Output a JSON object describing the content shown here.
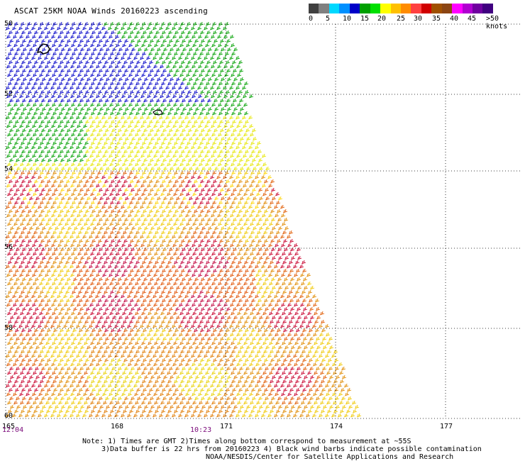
{
  "title": "ASCAT 25KM NOAA Winds 20160223 ascending",
  "legend": {
    "colors": [
      "#404040",
      "#808080",
      "#00d8ff",
      "#0090ff",
      "#0000c8",
      "#00a000",
      "#00e000",
      "#ffff00",
      "#ffc000",
      "#ff8c00",
      "#ff4040",
      "#d00000",
      "#a05000",
      "#8b4513",
      "#ff00ff",
      "#b000d0",
      "#7000a0",
      "#400080"
    ],
    "labels": [
      "0",
      "5",
      "10",
      "15",
      "20",
      "25",
      "30",
      "35",
      "40",
      "45",
      ">50 knots"
    ]
  },
  "map": {
    "latitude_labels": [
      "50",
      "52",
      "54",
      "56",
      "58",
      "60"
    ],
    "longitude_labels": [
      "165",
      "168",
      "171",
      "174",
      "177"
    ],
    "time_labels": [
      "12:04",
      "10:23"
    ]
  },
  "notes": [
    "Note: 1) Times are GMT 2)Times along bottom correspond to measurement at ~55S",
    "3)Data buffer is 22 hrs from 20160223 4) Black wind barbs indicate possible contamination",
    "NOAA/NESDIS/Center for Satellite Applications and Research"
  ]
}
